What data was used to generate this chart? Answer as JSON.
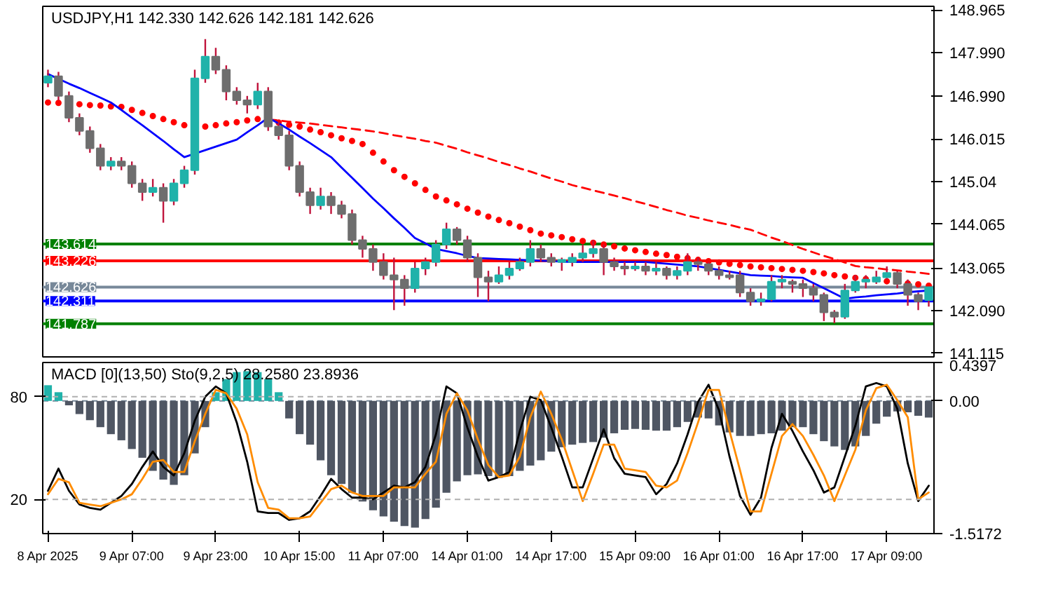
{
  "chart_data": [
    {
      "type": "candlestick",
      "title": "USDJPY,H1  142.330 142.626 142.181 142.626",
      "categories": [
        null,
        null,
        null,
        null,
        null,
        null,
        null,
        null,
        null,
        null,
        null,
        null,
        null,
        null,
        null,
        null,
        null,
        null,
        null,
        null,
        null,
        null,
        null,
        null,
        null,
        null,
        null,
        null,
        null,
        null,
        null,
        null,
        null,
        null,
        null,
        null,
        null,
        null,
        null,
        null,
        null,
        null,
        null,
        null,
        null,
        null,
        null,
        null,
        null,
        null,
        null,
        null,
        null,
        null,
        null,
        null,
        null,
        null,
        null,
        null,
        null,
        null,
        null,
        null,
        null,
        null,
        null,
        null,
        null,
        null,
        null,
        null,
        null,
        null,
        null,
        null,
        null,
        null,
        null,
        null,
        null,
        null,
        null,
        null,
        null
      ],
      "ohlc": [
        [
          147.3,
          147.6,
          147.2,
          147.45
        ],
        [
          147.45,
          147.55,
          146.9,
          147.0
        ],
        [
          147.0,
          147.1,
          146.4,
          146.5
        ],
        [
          146.5,
          146.6,
          146.1,
          146.2
        ],
        [
          146.2,
          146.3,
          145.7,
          145.8
        ],
        [
          145.8,
          145.9,
          145.3,
          145.4
        ],
        [
          145.4,
          145.6,
          145.3,
          145.5
        ],
        [
          145.5,
          145.6,
          145.3,
          145.4
        ],
        [
          145.4,
          145.5,
          144.9,
          145.0
        ],
        [
          145.0,
          145.1,
          144.6,
          144.8
        ],
        [
          144.8,
          145.1,
          144.7,
          144.9
        ],
        [
          144.9,
          145.0,
          144.1,
          144.6
        ],
        [
          144.6,
          145.1,
          144.5,
          145.0
        ],
        [
          145.0,
          145.4,
          144.9,
          145.3
        ],
        [
          145.3,
          147.6,
          145.2,
          147.4
        ],
        [
          147.4,
          148.3,
          147.3,
          147.9
        ],
        [
          147.9,
          148.1,
          147.5,
          147.6
        ],
        [
          147.6,
          147.7,
          146.9,
          147.1
        ],
        [
          147.1,
          147.2,
          146.8,
          146.9
        ],
        [
          146.9,
          147.0,
          146.6,
          146.8
        ],
        [
          146.8,
          147.3,
          146.7,
          147.1
        ],
        [
          147.1,
          147.2,
          146.2,
          146.3
        ],
        [
          146.3,
          146.4,
          146.0,
          146.1
        ],
        [
          146.1,
          146.2,
          145.3,
          145.4
        ],
        [
          145.4,
          145.5,
          144.7,
          144.8
        ],
        [
          144.8,
          144.9,
          144.3,
          144.5
        ],
        [
          144.5,
          144.9,
          144.4,
          144.7
        ],
        [
          144.7,
          144.8,
          144.3,
          144.5
        ],
        [
          144.5,
          144.6,
          144.2,
          144.3
        ],
        [
          144.3,
          144.4,
          143.6,
          143.7
        ],
        [
          143.7,
          143.8,
          143.3,
          143.5
        ],
        [
          143.5,
          143.6,
          143.0,
          143.2
        ],
        [
          143.2,
          143.4,
          142.8,
          142.9
        ],
        [
          142.9,
          143.3,
          142.1,
          142.8
        ],
        [
          142.8,
          142.9,
          142.2,
          142.6
        ],
        [
          142.6,
          143.2,
          142.5,
          143.05
        ],
        [
          143.05,
          143.3,
          142.9,
          143.2
        ],
        [
          143.2,
          143.7,
          143.1,
          143.6
        ],
        [
          143.6,
          144.1,
          143.5,
          143.95
        ],
        [
          143.95,
          144.0,
          143.6,
          143.7
        ],
        [
          143.7,
          143.8,
          143.2,
          143.3
        ],
        [
          143.3,
          143.4,
          142.4,
          142.85
        ],
        [
          142.85,
          143.0,
          142.3,
          142.75
        ],
        [
          142.75,
          143.1,
          142.7,
          142.9
        ],
        [
          142.9,
          143.2,
          142.8,
          143.05
        ],
        [
          143.05,
          143.3,
          143.0,
          143.2
        ],
        [
          143.2,
          143.7,
          143.1,
          143.5
        ],
        [
          143.5,
          143.6,
          143.2,
          143.3
        ],
        [
          143.3,
          143.4,
          143.1,
          143.2
        ],
        [
          143.2,
          143.3,
          143.0,
          143.25
        ],
        [
          143.2,
          143.4,
          143.1,
          143.3
        ],
        [
          143.3,
          143.6,
          143.2,
          143.4
        ],
        [
          143.4,
          143.7,
          143.3,
          143.5
        ],
        [
          143.5,
          143.6,
          142.9,
          143.2
        ],
        [
          143.2,
          143.3,
          143.0,
          143.1
        ],
        [
          143.1,
          143.2,
          142.9,
          143.05
        ],
        [
          143.05,
          143.2,
          143.0,
          143.1
        ],
        [
          143.1,
          143.2,
          142.9,
          143.0
        ],
        [
          143.0,
          143.2,
          142.9,
          143.05
        ],
        [
          143.05,
          143.1,
          142.8,
          142.9
        ],
        [
          142.9,
          143.1,
          142.8,
          143.0
        ],
        [
          143.0,
          143.4,
          142.9,
          143.2
        ],
        [
          143.2,
          143.3,
          143.0,
          143.15
        ],
        [
          143.15,
          143.2,
          142.9,
          143.0
        ],
        [
          143.0,
          143.1,
          142.8,
          142.9
        ],
        [
          142.9,
          143.0,
          142.8,
          142.85
        ],
        [
          142.9,
          143.0,
          142.4,
          142.5
        ],
        [
          142.5,
          142.6,
          142.2,
          142.3
        ],
        [
          142.3,
          142.5,
          142.2,
          142.35
        ],
        [
          142.35,
          142.9,
          142.3,
          142.75
        ],
        [
          142.75,
          142.9,
          142.6,
          142.8
        ],
        [
          142.75,
          142.8,
          142.5,
          142.7
        ],
        [
          142.7,
          142.8,
          142.4,
          142.6
        ],
        [
          142.6,
          142.7,
          142.3,
          142.45
        ],
        [
          142.45,
          142.5,
          141.85,
          142.05
        ],
        [
          142.05,
          142.1,
          141.8,
          141.95
        ],
        [
          141.95,
          142.7,
          141.9,
          142.55
        ],
        [
          142.55,
          142.9,
          142.5,
          142.75
        ],
        [
          142.75,
          142.9,
          142.6,
          142.8
        ],
        [
          142.75,
          143.0,
          142.7,
          142.85
        ],
        [
          142.85,
          143.1,
          142.8,
          142.95
        ],
        [
          142.95,
          143.0,
          142.6,
          142.7
        ],
        [
          142.7,
          142.8,
          142.2,
          142.45
        ],
        [
          142.45,
          142.5,
          142.1,
          142.3
        ],
        [
          142.33,
          142.626,
          142.181,
          142.626
        ]
      ],
      "colors": [
        "#20b2aa",
        "#6e6e6e",
        "#6e6e6e",
        "#6e6e6e",
        "#6e6e6e",
        "#6e6e6e",
        "#20b2aa",
        "#6e6e6e",
        "#6e6e6e",
        "#6e6e6e",
        "#20b2aa",
        "#6e6e6e",
        "#20b2aa",
        "#20b2aa",
        "#20b2aa",
        "#20b2aa",
        "#6e6e6e",
        "#6e6e6e",
        "#6e6e6e",
        "#6e6e6e",
        "#20b2aa",
        "#6e6e6e",
        "#6e6e6e",
        "#6e6e6e",
        "#6e6e6e",
        "#6e6e6e",
        "#20b2aa",
        "#6e6e6e",
        "#6e6e6e",
        "#6e6e6e",
        "#6e6e6e",
        "#6e6e6e",
        "#6e6e6e",
        "#6e6e6e",
        "#6e6e6e",
        "#20b2aa",
        "#20b2aa",
        "#20b2aa",
        "#20b2aa",
        "#6e6e6e",
        "#6e6e6e",
        "#6e6e6e",
        "#6e6e6e",
        "#20b2aa",
        "#20b2aa",
        "#20b2aa",
        "#20b2aa",
        "#6e6e6e",
        "#6e6e6e",
        "#20b2aa",
        "#20b2aa",
        "#20b2aa",
        "#20b2aa",
        "#6e6e6e",
        "#6e6e6e",
        "#6e6e6e",
        "#20b2aa",
        "#6e6e6e",
        "#20b2aa",
        "#6e6e6e",
        "#20b2aa",
        "#20b2aa",
        "#6e6e6e",
        "#6e6e6e",
        "#6e6e6e",
        "#6e6e6e",
        "#6e6e6e",
        "#6e6e6e",
        "#20b2aa",
        "#20b2aa",
        "#20b2aa",
        "#6e6e6e",
        "#6e6e6e",
        "#6e6e6e",
        "#6e6e6e",
        "#6e6e6e",
        "#20b2aa",
        "#20b2aa",
        "#20b2aa",
        "#20b2aa",
        "#20b2aa",
        "#6e6e6e",
        "#6e6e6e",
        "#6e6e6e",
        "#20b2aa"
      ],
      "series": [
        {
          "type": "scatter",
          "marker": "circle",
          "color": "#ff0000",
          "values": [
            146.85,
            146.84,
            null,
            146.81,
            146.79,
            146.78,
            146.76,
            146.75,
            146.68,
            146.61,
            146.54,
            146.47,
            146.4,
            146.33,
            null,
            146.3,
            146.33,
            146.37,
            146.4,
            146.44,
            146.47,
            null,
            146.39,
            146.34,
            146.3,
            146.23,
            146.17,
            146.1,
            146.03,
            145.97,
            145.9,
            145.7,
            145.5,
            145.3,
            145.15,
            145.0,
            144.85,
            144.7,
            144.61,
            144.52,
            144.42,
            144.33,
            144.24,
            144.16,
            144.09,
            144.01,
            143.93,
            143.85,
            143.81,
            143.77,
            143.72,
            143.68,
            143.64,
            143.6,
            143.56,
            143.51,
            143.47,
            143.43,
            143.39,
            143.36,
            143.32,
            143.29,
            143.25,
            143.22,
            143.19,
            143.16,
            143.13,
            143.1,
            143.08,
            143.06,
            143.04,
            143.02,
            143.0,
            142.97,
            142.94,
            142.9,
            142.87,
            142.84,
            142.81,
            null,
            142.76,
            null,
            142.71,
            142.69,
            142.66
          ]
        },
        {
          "type": "line",
          "line_style": "dashed",
          "color": "#ff0000",
          "values": [
            null,
            null,
            null,
            null,
            null,
            null,
            null,
            null,
            null,
            null,
            null,
            null,
            null,
            null,
            null,
            null,
            null,
            null,
            null,
            null,
            null,
            146.46,
            146.44,
            146.41,
            146.39,
            146.37,
            146.34,
            146.31,
            146.28,
            146.25,
            146.22,
            146.19,
            146.15,
            146.1,
            146.06,
            146.02,
            145.97,
            145.93,
            145.86,
            145.79,
            145.71,
            145.64,
            145.57,
            145.49,
            145.42,
            145.34,
            145.27,
            145.19,
            145.11,
            145.04,
            144.96,
            144.9,
            144.84,
            144.78,
            144.72,
            144.66,
            144.59,
            144.53,
            144.46,
            144.39,
            144.33,
            144.26,
            144.21,
            144.15,
            144.1,
            144.05,
            143.99,
            143.94,
            143.85,
            143.76,
            143.68,
            143.59,
            143.5,
            143.42,
            143.34,
            143.27,
            143.19,
            143.11,
            143.08,
            143.06,
            143.03,
            143.01,
            142.98,
            142.96,
            142.93
          ]
        },
        {
          "type": "line",
          "line_style": "solid",
          "color": "#0000ff",
          "values": [
            147.5,
            147.39,
            147.28,
            147.18,
            147.07,
            146.96,
            146.85,
            146.68,
            146.5,
            146.33,
            146.15,
            145.97,
            145.78,
            145.6,
            145.68,
            145.76,
            145.84,
            145.92,
            146.0,
            146.17,
            146.33,
            146.5,
            146.37,
            146.23,
            146.07,
            145.92,
            145.76,
            145.6,
            145.36,
            145.13,
            144.89,
            144.65,
            144.43,
            144.2,
            143.98,
            143.75,
            143.63,
            143.5,
            143.45,
            143.4,
            143.34,
            143.29,
            143.28,
            143.27,
            143.26,
            143.25,
            143.24,
            143.23,
            143.22,
            143.21,
            143.2,
            143.2,
            143.2,
            143.2,
            143.2,
            143.2,
            143.2,
            143.2,
            143.18,
            143.16,
            143.14,
            143.12,
            143.1,
            143.06,
            143.02,
            142.98,
            142.94,
            142.9,
            142.89,
            142.88,
            142.86,
            142.85,
            142.84,
            142.72,
            142.6,
            142.48,
            142.36,
            142.39,
            142.41,
            142.44,
            142.46,
            142.48,
            142.51,
            142.53,
            142.55
          ]
        }
      ],
      "ylim": [
        141.03,
        149.05
      ],
      "yticks": [
        148.965,
        {
          "value": 147.99,
          "label": "147.990"
        },
        {
          "value": 146.99,
          "label": "146.990"
        },
        146.015,
        145.04,
        144.065,
        143.065,
        {
          "value": 142.09,
          "label": "142.090"
        },
        141.115
      ],
      "tick_labels": "y",
      "grid": false,
      "ref_lines": [
        {
          "axis": "y",
          "value": 143.614,
          "label": "143.614",
          "color": "#008000"
        },
        {
          "axis": "y",
          "value": 143.226,
          "label": "143.226",
          "color": "#ff0000"
        },
        {
          "axis": "y",
          "value": 142.626,
          "label": "142.626",
          "color": "#778899"
        },
        {
          "axis": "y",
          "value": 142.311,
          "label": "142.311",
          "color": "#0000ff"
        },
        {
          "axis": "y",
          "value": 141.787,
          "label": "141.787",
          "color": "#008000"
        }
      ]
    },
    {
      "type": "bar",
      "title": "MACD [0](13,50)  Sto(9,2,5) 28.2580 23.8936",
      "categories": [
        "8 Apr 2025",
        null,
        null,
        null,
        null,
        null,
        null,
        null,
        "9 Apr 07:00",
        null,
        null,
        null,
        null,
        null,
        null,
        null,
        "9 Apr 23:00",
        null,
        null,
        null,
        null,
        null,
        null,
        null,
        "10 Apr 15:00",
        null,
        null,
        null,
        null,
        null,
        null,
        null,
        "11 Apr 07:00",
        null,
        null,
        null,
        null,
        null,
        null,
        null,
        "14 Apr 01:00",
        null,
        null,
        null,
        null,
        null,
        null,
        null,
        "14 Apr 17:00",
        null,
        null,
        null,
        null,
        null,
        null,
        null,
        "15 Apr 09:00",
        null,
        null,
        null,
        null,
        null,
        null,
        null,
        "16 Apr 01:00",
        null,
        null,
        null,
        null,
        null,
        null,
        null,
        "16 Apr 17:00",
        null,
        null,
        null,
        null,
        null,
        null,
        null,
        "17 Apr 09:00",
        null,
        null,
        null,
        null
      ],
      "series": [
        {
          "type": "bar",
          "values": [
            0.18,
            0.1,
            -0.05,
            -0.15,
            -0.22,
            -0.3,
            -0.38,
            -0.45,
            -0.55,
            -0.65,
            -0.8,
            -0.9,
            -0.96,
            -0.85,
            -0.6,
            -0.3,
            0.1,
            0.25,
            0.33,
            0.34,
            0.33,
            0.25,
            0.1,
            -0.2,
            -0.38,
            -0.5,
            -0.68,
            -0.85,
            -0.95,
            -1.05,
            -1.15,
            -1.25,
            -1.32,
            -1.38,
            -1.43,
            -1.45,
            -1.35,
            -1.22,
            -1.05,
            -0.92,
            -0.85,
            -0.84,
            -0.86,
            -0.88,
            -0.86,
            -0.8,
            -0.74,
            -0.68,
            -0.58,
            -0.53,
            -0.5,
            -0.48,
            -0.47,
            -0.42,
            -0.37,
            -0.33,
            -0.32,
            -0.33,
            -0.34,
            -0.34,
            -0.3,
            -0.24,
            -0.19,
            -0.2,
            -0.28,
            -0.36,
            -0.4,
            -0.4,
            -0.38,
            -0.37,
            -0.34,
            -0.3,
            -0.3,
            -0.38,
            -0.46,
            -0.52,
            -0.56,
            -0.52,
            -0.4,
            -0.26,
            -0.18,
            -0.12,
            -0.13,
            -0.17,
            -0.19
          ],
          "colors": [
            "#20b2aa",
            "#20b2aa",
            "#4f5663",
            "#4f5663",
            "#4f5663",
            "#4f5663",
            "#4f5663",
            "#4f5663",
            "#4f5663",
            "#4f5663",
            "#4f5663",
            "#4f5663",
            "#4f5663",
            "#4f5663",
            "#4f5663",
            "#4f5663",
            "#20b2aa",
            "#20b2aa",
            "#20b2aa",
            "#20b2aa",
            "#20b2aa",
            "#20b2aa",
            "#20b2aa",
            "#4f5663",
            "#4f5663",
            "#4f5663",
            "#4f5663",
            "#4f5663",
            "#4f5663",
            "#4f5663",
            "#4f5663",
            "#4f5663",
            "#4f5663",
            "#4f5663",
            "#4f5663",
            "#4f5663",
            "#4f5663",
            "#4f5663",
            "#4f5663",
            "#4f5663",
            "#4f5663",
            "#4f5663",
            "#4f5663",
            "#4f5663",
            "#4f5663",
            "#4f5663",
            "#4f5663",
            "#4f5663",
            "#4f5663",
            "#4f5663",
            "#4f5663",
            "#4f5663",
            "#4f5663",
            "#4f5663",
            "#4f5663",
            "#4f5663",
            "#4f5663",
            "#4f5663",
            "#4f5663",
            "#4f5663",
            "#4f5663",
            "#4f5663",
            "#4f5663",
            "#4f5663",
            "#4f5663",
            "#4f5663",
            "#4f5663",
            "#4f5663",
            "#4f5663",
            "#4f5663",
            "#4f5663",
            "#4f5663",
            "#4f5663",
            "#4f5663",
            "#4f5663",
            "#4f5663",
            "#4f5663",
            "#4f5663",
            "#4f5663",
            "#4f5663",
            "#4f5663",
            "#4f5663",
            "#4f5663",
            "#4f5663",
            "#4f5663"
          ]
        },
        {
          "type": "line",
          "axis": "y2",
          "color": "#000000",
          "values": [
            25,
            38,
            25,
            17,
            15,
            14,
            18,
            22,
            29,
            39,
            48,
            39,
            34,
            47,
            66,
            80,
            86,
            82,
            65,
            42,
            13,
            12,
            12,
            8,
            9,
            13,
            22,
            32,
            26,
            21,
            21,
            20,
            24,
            28,
            27,
            30,
            39,
            58,
            86,
            82,
            62,
            45,
            31,
            33,
            36,
            60,
            80,
            78,
            62,
            45,
            27,
            27,
            44,
            61,
            44,
            35,
            34,
            33,
            23,
            29,
            41,
            58,
            77,
            87,
            72,
            45,
            22,
            11,
            21,
            50,
            70,
            60,
            48,
            37,
            24,
            27,
            45,
            63,
            86,
            88,
            86,
            73,
            41,
            19,
            28
          ]
        },
        {
          "type": "line",
          "axis": "y2",
          "color": "#ff8c00",
          "values": [
            23,
            32,
            30,
            18,
            17,
            16,
            18,
            20,
            23,
            32,
            42,
            43,
            36,
            36,
            54,
            70,
            84,
            82,
            73,
            58,
            30,
            15,
            14,
            9,
            9,
            10,
            18,
            26,
            28,
            24,
            22,
            22,
            22,
            27,
            27,
            27,
            35,
            42,
            70,
            82,
            72,
            55,
            40,
            33,
            34,
            45,
            68,
            83,
            70,
            55,
            37,
            19,
            35,
            52,
            52,
            38,
            37,
            36,
            28,
            27,
            31,
            47,
            65,
            84,
            84,
            60,
            37,
            13,
            13,
            35,
            57,
            64,
            57,
            46,
            34,
            19,
            34,
            49,
            72,
            85,
            87,
            78,
            68,
            20,
            24
          ]
        }
      ],
      "ylim": [
        -1.5172,
        0.4397
      ],
      "yticks": [
        0.4397,
        {
          "value": 0,
          "label": "0.00"
        },
        -1.5172
      ],
      "y2lim": [
        0,
        100
      ],
      "y2ticks": [
        20,
        80
      ],
      "grid": false,
      "ref_lines": [
        {
          "axis": "y",
          "value": 0,
          "color": "#778899",
          "line_style": "dashed"
        },
        {
          "axis": "y2",
          "value": 20,
          "color": "#b0b0b0",
          "line_style": "dashed"
        },
        {
          "axis": "y2",
          "value": 80,
          "color": "#b0b0b0",
          "line_style": "dashed"
        }
      ]
    }
  ]
}
